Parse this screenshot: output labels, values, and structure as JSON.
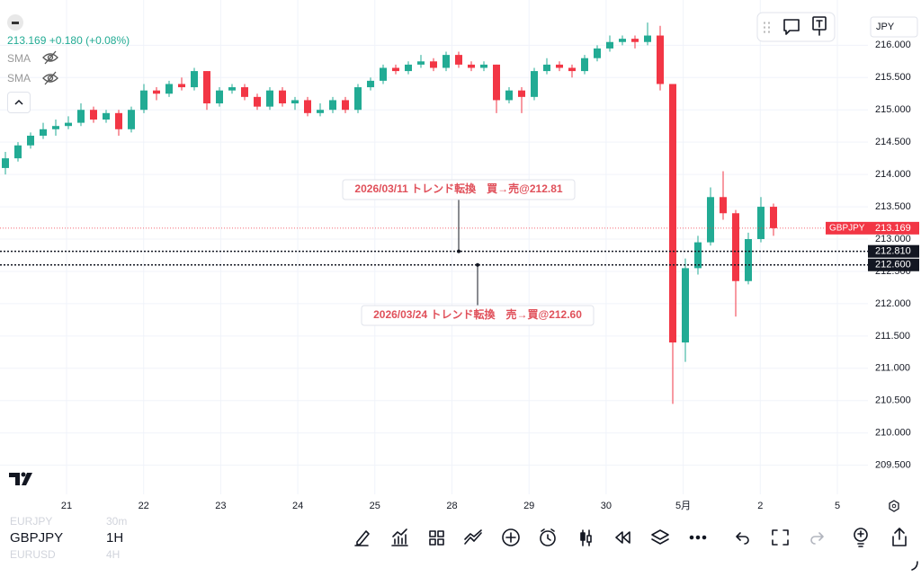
{
  "header": {
    "price": "213.169",
    "change": "+0.180 (+0.08%)",
    "indicators": [
      "SMA",
      "SMA"
    ]
  },
  "currency": "JPY",
  "chart_data": {
    "type": "candlestick",
    "open": [
      214.1,
      214.25,
      214.45,
      214.6,
      214.7,
      214.75,
      214.8,
      215.0,
      214.85,
      214.95,
      214.7,
      215.0,
      215.3,
      215.25,
      215.4,
      215.35,
      215.6,
      215.1,
      215.3,
      215.35,
      215.2,
      215.05,
      215.3,
      215.1,
      215.15,
      214.95,
      215.0,
      215.15,
      215.0,
      215.35,
      215.45,
      215.65,
      215.6,
      215.7,
      215.75,
      215.65,
      215.85,
      215.7,
      215.65,
      215.7,
      215.15,
      215.3,
      215.2,
      215.6,
      215.7,
      215.65,
      215.6,
      215.8,
      215.95,
      216.05,
      216.1,
      216.05,
      216.15,
      215.4,
      211.4,
      212.55,
      212.95,
      213.65,
      213.4,
      212.35,
      213.0,
      213.5
    ],
    "high": [
      214.35,
      214.5,
      214.65,
      214.8,
      214.85,
      214.9,
      215.1,
      215.05,
      215.0,
      215.0,
      215.05,
      215.4,
      215.35,
      215.45,
      215.5,
      215.65,
      215.6,
      215.35,
      215.4,
      215.4,
      215.25,
      215.35,
      215.35,
      215.2,
      215.2,
      215.1,
      215.2,
      215.2,
      215.4,
      215.5,
      215.7,
      215.7,
      215.75,
      215.85,
      215.8,
      215.9,
      215.9,
      215.75,
      215.75,
      215.7,
      215.35,
      215.35,
      215.65,
      215.8,
      215.75,
      215.7,
      215.85,
      216.0,
      216.15,
      216.15,
      216.15,
      216.35,
      216.3,
      215.4,
      212.7,
      213.05,
      213.8,
      214.05,
      213.45,
      213.1,
      213.65,
      213.55
    ],
    "low": [
      214.0,
      214.2,
      214.4,
      214.55,
      214.6,
      214.7,
      214.75,
      214.8,
      214.8,
      214.6,
      214.65,
      214.95,
      215.15,
      215.2,
      215.3,
      215.3,
      215.0,
      215.05,
      215.25,
      215.15,
      215.0,
      215.0,
      215.05,
      215.0,
      214.9,
      214.9,
      214.95,
      214.95,
      214.95,
      215.3,
      215.4,
      215.55,
      215.55,
      215.65,
      215.6,
      215.6,
      215.65,
      215.6,
      215.6,
      214.95,
      215.1,
      214.95,
      215.15,
      215.55,
      215.6,
      215.5,
      215.55,
      215.75,
      215.9,
      216.0,
      215.95,
      216.0,
      215.3,
      210.45,
      211.1,
      212.45,
      212.9,
      213.3,
      211.8,
      212.3,
      212.95,
      213.05
    ],
    "close": [
      214.25,
      214.45,
      214.6,
      214.7,
      214.75,
      214.8,
      215.0,
      214.85,
      214.95,
      214.7,
      215.0,
      215.3,
      215.25,
      215.4,
      215.35,
      215.6,
      215.1,
      215.3,
      215.35,
      215.2,
      215.05,
      215.3,
      215.1,
      215.15,
      214.95,
      215.0,
      215.15,
      215.0,
      215.35,
      215.45,
      215.65,
      215.6,
      215.7,
      215.75,
      215.65,
      215.85,
      215.7,
      215.65,
      215.7,
      215.15,
      215.3,
      215.2,
      215.6,
      215.7,
      215.65,
      215.6,
      215.8,
      215.95,
      216.05,
      216.1,
      216.05,
      216.15,
      215.4,
      211.4,
      212.55,
      212.95,
      213.65,
      213.4,
      212.35,
      213.0,
      213.5,
      213.169
    ],
    "up_color": "#22ab94",
    "down_color": "#f23645",
    "ylim": [
      209.05,
      216.7
    ],
    "yticks": [
      {
        "value": 209.5,
        "label": "209.500"
      },
      {
        "value": 210,
        "label": "210.000"
      },
      {
        "value": 210.5,
        "label": "210.500"
      },
      {
        "value": 211,
        "label": "211.000"
      },
      {
        "value": 211.5,
        "label": "211.500"
      },
      {
        "value": 212,
        "label": "212.000"
      },
      {
        "value": 212.5,
        "label": "212.500"
      },
      {
        "value": 213,
        "label": "213.000"
      },
      {
        "value": 213.5,
        "label": "213.500"
      },
      {
        "value": 214,
        "label": "214.000"
      },
      {
        "value": 214.5,
        "label": "214.500"
      },
      {
        "value": 215,
        "label": "215.000"
      },
      {
        "value": 215.5,
        "label": "215.500"
      },
      {
        "value": 216,
        "label": "216.000"
      }
    ],
    "xticks": [
      "21",
      "22",
      "23",
      "24",
      "25",
      "28",
      "29",
      "30",
      "5月",
      "2",
      "5"
    ],
    "hlines": [
      {
        "value": 212.81,
        "label": "212.810"
      },
      {
        "value": 212.6,
        "label": "212.600"
      }
    ],
    "annotations": [
      "2026/03/11 トレンド転換　買→売@212.81",
      "2026/03/24 トレンド転換　売→買@212.60"
    ],
    "last_price": {
      "symbol": "GBPJPY",
      "value": 213.169
    },
    "grid": true
  },
  "bottom_bar": {
    "symbols": [
      {
        "name": "EURJPY",
        "interval": "30m"
      },
      {
        "name": "GBPJPY",
        "interval": "1H"
      },
      {
        "name": "EURUSD",
        "interval": "4H"
      }
    ]
  }
}
